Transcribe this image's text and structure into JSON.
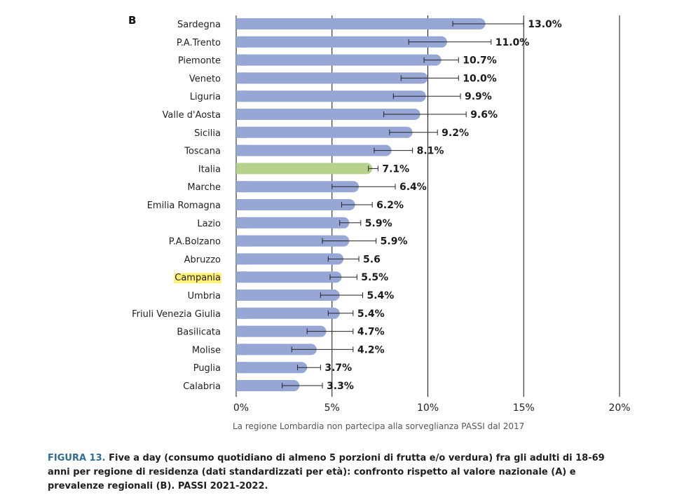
{
  "panel_letter": "B",
  "colors": {
    "bar": "#96a7d6",
    "highlight_bar": "#b5d28c",
    "highlight_label_bg": "#fff176",
    "error": "#222222",
    "gridline": "#111111",
    "caption_prefix": "#2f6f8f"
  },
  "note": "La regione Lombardia non partecipa alla sorveglianza PASSI dal 2017",
  "caption": {
    "prefix": "FIGURA 13.",
    "text": " Five a day (consumo quotidiano di almeno 5 porzioni di frutta e/o verdura) fra gli adulti di 18-69 anni per regione di residenza (dati standardizzati per età): confronto rispetto al valore nazionale (A) e prevalenze regionali (B). PASSI 2021-2022."
  },
  "chart_data": {
    "type": "bar",
    "orientation": "horizontal",
    "title": "",
    "xlabel": "",
    "ylabel": "",
    "xlim": [
      0,
      20
    ],
    "xticks": [
      0,
      5,
      10,
      15,
      20
    ],
    "xtick_labels": [
      "0%",
      "5%",
      "10%",
      "15%",
      "20%"
    ],
    "grid": "vertical gridlines at 5% intervals",
    "highlight_bar": "Italia",
    "highlight_label": "Campania",
    "categories": [
      "Sardegna",
      "P.A.Trento",
      "Piemonte",
      "Veneto",
      "Liguria",
      "Valle d'Aosta",
      "Sicilia",
      "Toscana",
      "Italia",
      "Marche",
      "Emilia Romagna",
      "Lazio",
      "P.A.Bolzano",
      "Abruzzo",
      "Campania",
      "Umbria",
      "Friuli Venezia Giulia",
      "Basilicata",
      "Molise",
      "Puglia",
      "Calabria"
    ],
    "values": [
      13.0,
      11.0,
      10.7,
      10.0,
      9.9,
      9.6,
      9.2,
      8.1,
      7.1,
      6.4,
      6.2,
      5.9,
      5.9,
      5.6,
      5.5,
      5.4,
      5.4,
      4.7,
      4.2,
      3.7,
      3.3
    ],
    "value_labels": [
      "13.0%",
      "11.0%",
      "10.7%",
      "10.0%",
      "9.9%",
      "9.6%",
      "9.2%",
      "8.1%",
      "7.1%",
      "6.4%",
      "6.2%",
      "5.9%",
      "5.9%",
      "5.6",
      "5.5%",
      "5.4%",
      "5.4%",
      "4.7%",
      "4.2%",
      "3.7%",
      "3.3%"
    ],
    "ci_lower": [
      11.3,
      9.0,
      9.8,
      8.6,
      8.2,
      7.7,
      8.0,
      7.2,
      6.9,
      5.0,
      5.5,
      5.4,
      4.5,
      4.8,
      4.9,
      4.4,
      4.8,
      3.7,
      2.9,
      3.2,
      2.4
    ],
    "ci_upper": [
      15.0,
      13.3,
      11.6,
      11.6,
      11.7,
      12.0,
      10.5,
      9.2,
      7.4,
      8.3,
      7.1,
      6.5,
      7.3,
      6.4,
      6.3,
      6.6,
      6.1,
      6.1,
      6.1,
      4.4,
      4.5
    ]
  }
}
